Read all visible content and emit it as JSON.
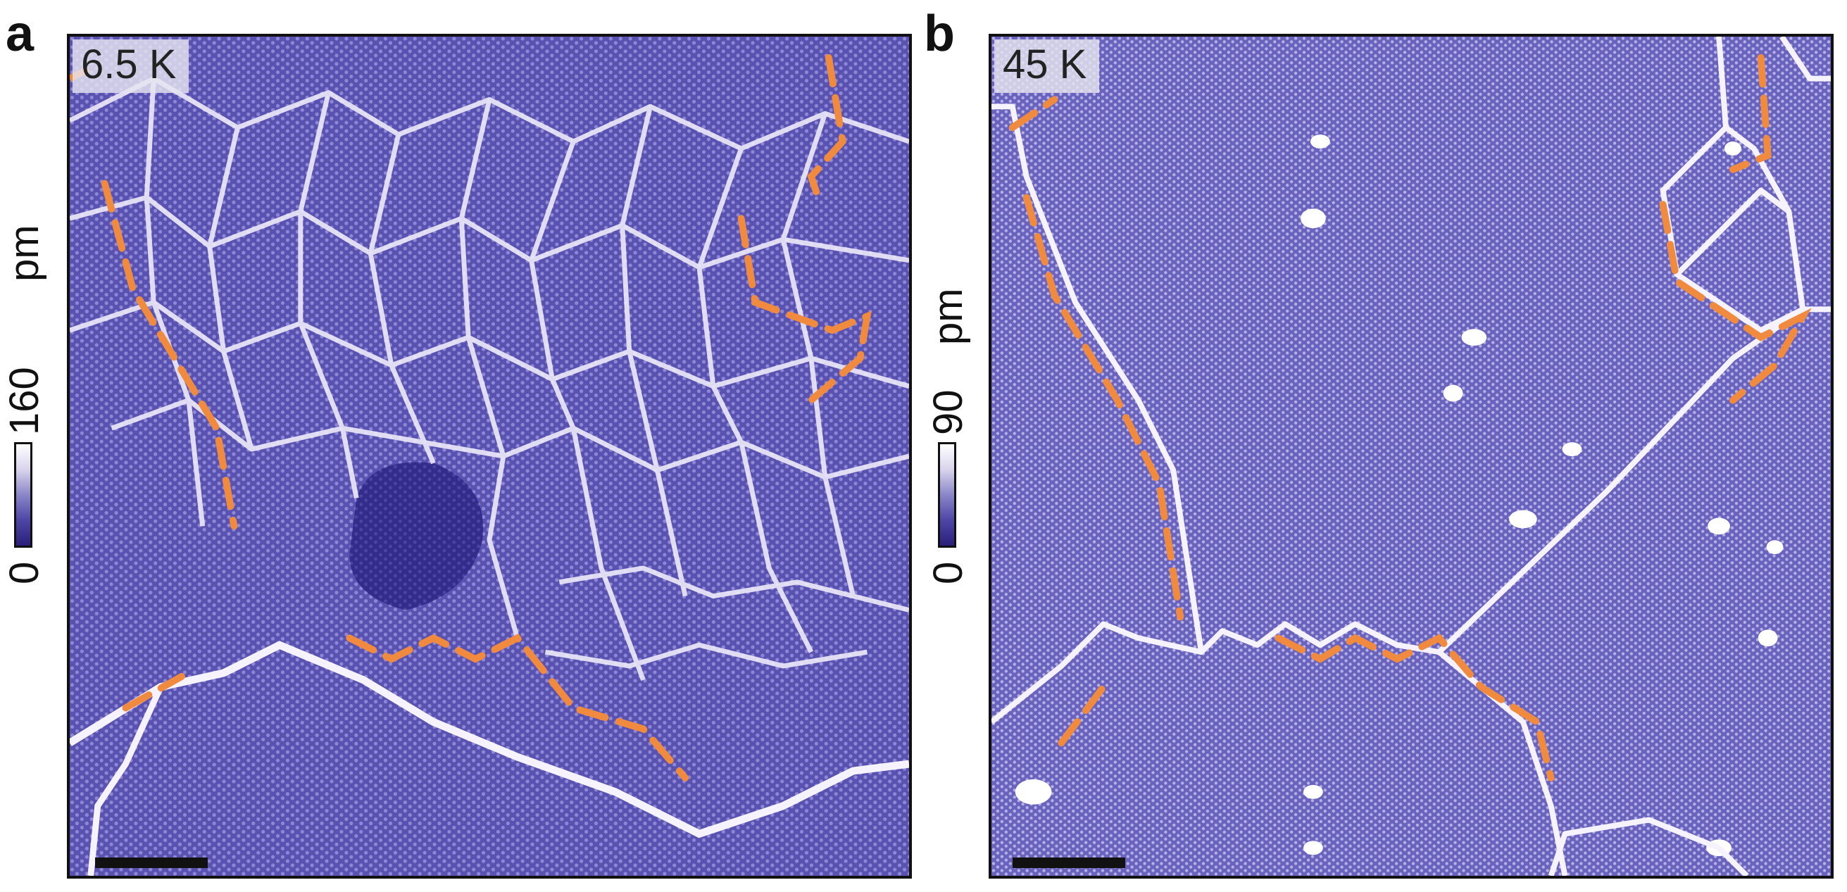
{
  "figure": {
    "panels": [
      {
        "letter": "a",
        "temperature": "6.5 K",
        "colorbar": {
          "min": "0",
          "max": "160",
          "unit": "pm"
        }
      },
      {
        "letter": "b",
        "temperature": "45 K",
        "colorbar": {
          "min": "0",
          "max": "90",
          "unit": "pm"
        }
      }
    ],
    "colors": {
      "background_lattice": "#5a52b0",
      "domain_walls": "#f2eefc",
      "dark_region": "#2e2683",
      "annotation_dashes": "#f08a3e",
      "scale_bar": "#111111"
    }
  }
}
